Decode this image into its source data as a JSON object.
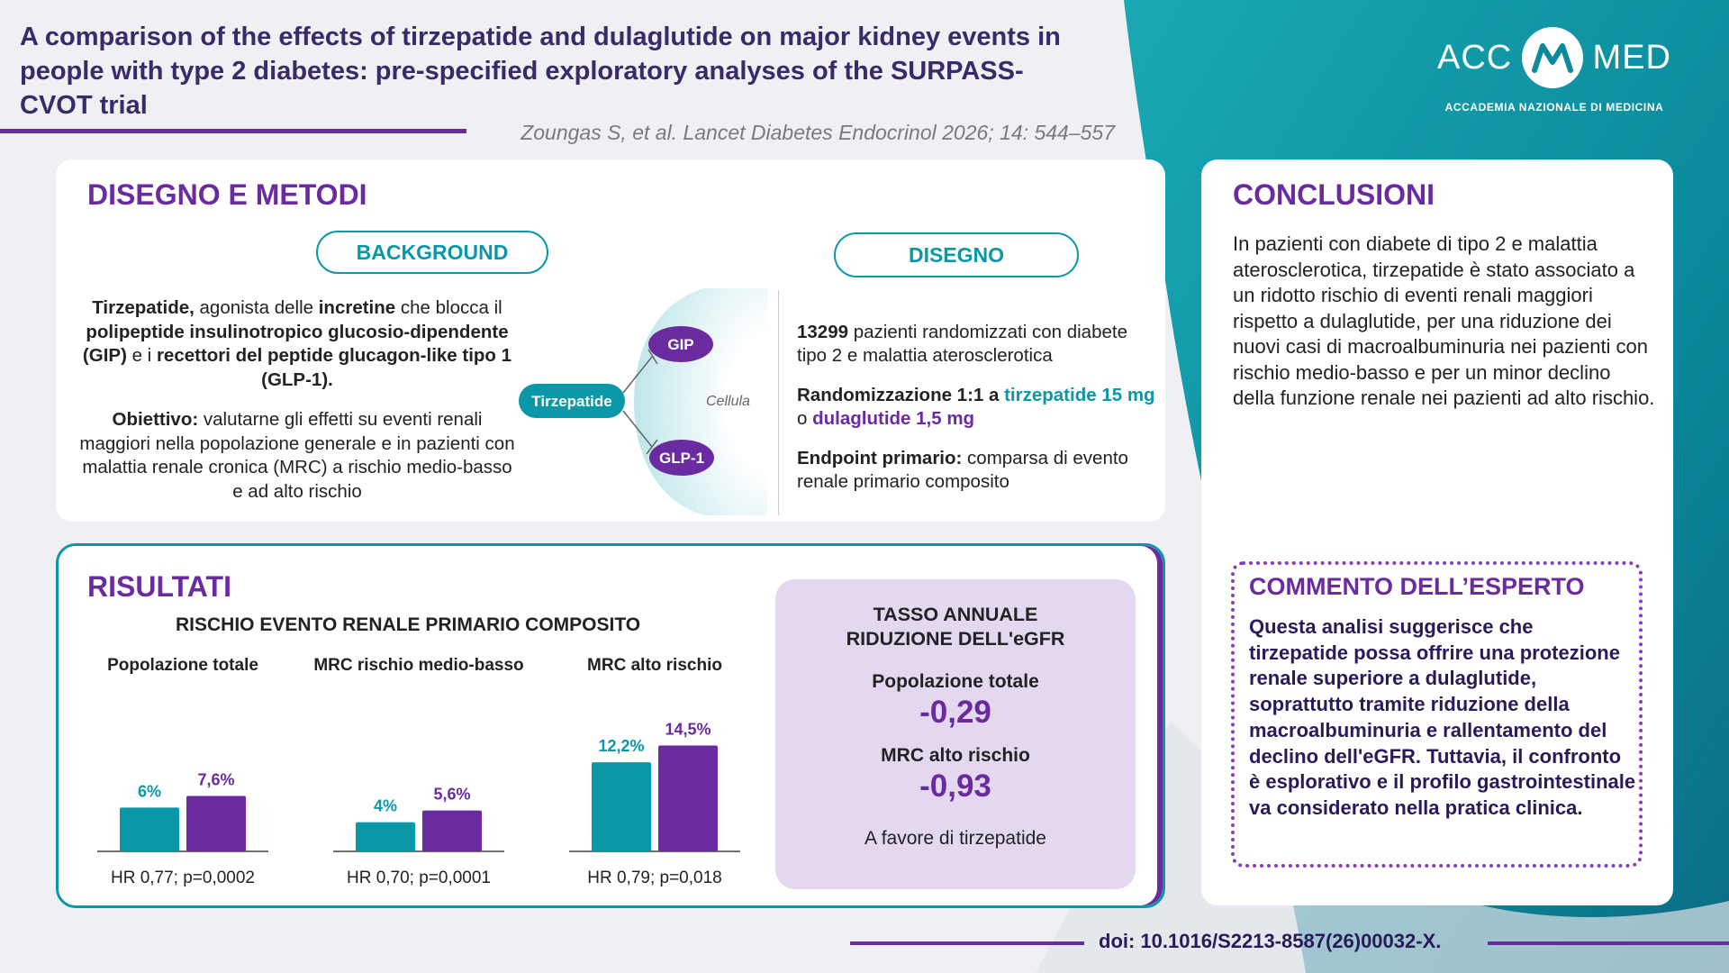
{
  "header": {
    "title": "A comparison of the effects of tirzepatide and dulaglutide on major kidney events in people with type 2 diabetes: pre-specified exploratory analyses of the SURPASS-CVOT trial",
    "citation": "Zoungas S, et al. Lancet Diabetes Endocrinol 2026; 14: 544–557"
  },
  "logo": {
    "left_word": "ACC",
    "right_word": "MED",
    "subtitle": "ACCADEMIA NAZIONALE DI MEDICINA"
  },
  "design_methods": {
    "title": "DISEGNO E METODI",
    "background_pill": "BACKGROUND",
    "design_pill": "DISEGNO",
    "background_text": {
      "b1": "Tirzepatide,",
      "t1": " agonista delle ",
      "b2": "incretine",
      "t2": " che blocca il ",
      "b3": "polipeptide insulinotropico glucosio-dipendente (GIP)",
      "t3": " e i ",
      "b4": "recettori del peptide glucagon-like tipo 1 (GLP-1).",
      "obj_label": "Obiettivo:",
      "obj_text": " valutarne gli effetti su eventi renali maggiori nella popolazione generale e in pazienti con malattia renale cronica (MRC) a rischio medio-basso e ad alto rischio"
    },
    "diagram": {
      "drug": "Tirzepatide",
      "receptor1": "GIP",
      "receptor2": "GLP-1",
      "cell": "Cellula"
    },
    "design_text": {
      "n_patients": "13299",
      "patients_text": " pazienti randomizzati con diabete tipo 2 e malattia aterosclerotica",
      "rand_label": "Randomizzazione 1:1 a ",
      "rand_drug1": "tirzepatide 15 mg",
      "rand_o": " o ",
      "rand_drug2": "dulaglutide 1,5 mg",
      "endpoint_label": "Endpoint primario:",
      "endpoint_text": " comparsa di evento renale primario composito"
    }
  },
  "results": {
    "title": "RISULTATI",
    "chart_title": "RISCHIO EVENTO RENALE PRIMARIO COMPOSITO"
  },
  "chart_data": {
    "type": "bar",
    "title": "RISCHIO EVENTO RENALE PRIMARIO COMPOSITO",
    "categories": [
      "Popolazione totale",
      "MRC rischio medio-basso",
      "MRC alto rischio"
    ],
    "series": [
      {
        "color": "#0a98a8",
        "values": [
          6,
          4,
          12.2
        ],
        "labels": [
          "6%",
          "4%",
          "12,2%"
        ]
      },
      {
        "color": "#6a2aa0",
        "values": [
          7.6,
          5.6,
          14.5
        ],
        "labels": [
          "7,6%",
          "5,6%",
          "14,5%"
        ]
      }
    ],
    "hr_labels": [
      "HR 0,77; p=0,0002",
      "HR 0,70; p=0,0001",
      "HR 0,79; p=0,018"
    ],
    "unit": "%"
  },
  "egfr": {
    "heading_line1": "TASSO ANNUALE",
    "heading_line2": "RIDUZIONE DELL'eGFR",
    "label1": "Popolazione totale",
    "value1": "-0,29",
    "label2": "MRC alto rischio",
    "value2": "-0,93",
    "favor": "A favore di tirzepatide"
  },
  "conclusions": {
    "title": "CONCLUSIONI",
    "text": "In pazienti con diabete di tipo 2 e malattia aterosclerotica, tirzepatide è stato associato a un ridotto rischio di eventi renali maggiori rispetto a dulaglutide, per una riduzione dei nuovi casi di macroalbuminuria nei pazienti con rischio medio-basso e per un minor declino della funzione renale nei pazienti ad alto rischio."
  },
  "expert": {
    "title": "COMMENTO DELL’ESPERTO",
    "text": "Questa analisi suggerisce che tirzepatide possa offrire una protezione renale superiore a dulaglutide, soprattutto tramite riduzione della macroalbuminuria e rallentamento del declino dell'eGFR. Tuttavia, il confronto è esplorativo e il profilo gastrointestinale va considerato nella pratica clinica."
  },
  "footer": {
    "doi": "doi: 10.1016/S2213-8587(26)00032-X."
  },
  "colors": {
    "teal": "#0a98a8",
    "purple": "#6a2aa0",
    "background": "#eef0f3"
  }
}
